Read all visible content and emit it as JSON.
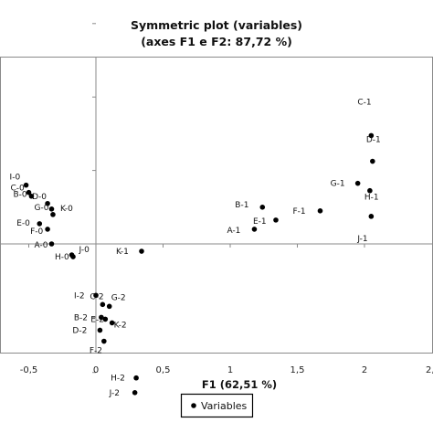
{
  "chart_data": {
    "type": "scatter",
    "title": "Symmetric plot (variables)",
    "subtitle": "(axes F1 e F2: 87,72 %)",
    "xlabel": "F1 (62,51 %)",
    "ylabel": "",
    "xlim": [
      -0.7,
      2.05
    ],
    "ylim": [
      -1.0,
      1.55
    ],
    "xticks": [
      -0.5,
      0,
      0.5,
      1,
      1.5,
      2
    ],
    "xtick_labels": [
      "-0,5",
      "0",
      "0,5",
      "1",
      "1,5",
      "2"
    ],
    "extra_xtick_label": "2,",
    "yticks": [
      -0.7,
      -0.4,
      0,
      0.4,
      0.8,
      1.2
    ],
    "grid": false,
    "legend": {
      "position": "bottom",
      "entries": [
        "Variables"
      ]
    },
    "series": [
      {
        "name": "Variables",
        "points": [
          {
            "label": "I-0",
            "x": -0.52,
            "y": 0.32
          },
          {
            "label": "C-0",
            "x": -0.5,
            "y": 0.28
          },
          {
            "label": "B-0",
            "x": -0.48,
            "y": 0.26
          },
          {
            "label": "D-0",
            "x": -0.36,
            "y": 0.22
          },
          {
            "label": "G-0",
            "x": -0.33,
            "y": 0.19
          },
          {
            "label": "K-0",
            "x": -0.32,
            "y": 0.16
          },
          {
            "label": "E-0",
            "x": -0.42,
            "y": 0.11
          },
          {
            "label": "F-0",
            "x": -0.36,
            "y": 0.08
          },
          {
            "label": "A-0",
            "x": -0.33,
            "y": 0.0
          },
          {
            "label": "J-0",
            "x": -0.18,
            "y": -0.06
          },
          {
            "label": "H-0",
            "x": -0.17,
            "y": -0.07
          },
          {
            "label": "K-1",
            "x": 0.34,
            "y": -0.04
          },
          {
            "label": "B-1",
            "x": 1.24,
            "y": 0.2
          },
          {
            "label": "E-1",
            "x": 1.34,
            "y": 0.13
          },
          {
            "label": "A-1",
            "x": 1.18,
            "y": 0.08
          },
          {
            "label": "F-1",
            "x": 1.67,
            "y": 0.18
          },
          {
            "label": "C-1",
            "x": 2.05,
            "y": 0.59
          },
          {
            "label": "D-1",
            "x": 2.06,
            "y": 0.45
          },
          {
            "label": "G-1",
            "x": 1.95,
            "y": 0.33
          },
          {
            "label": "H-1",
            "x": 2.04,
            "y": 0.29
          },
          {
            "label": "J-1",
            "x": 2.05,
            "y": 0.15
          },
          {
            "label": "I-2",
            "x": 0.0,
            "y": -0.28
          },
          {
            "label": "C-2",
            "x": 0.05,
            "y": -0.33
          },
          {
            "label": "G-2",
            "x": 0.1,
            "y": -0.34
          },
          {
            "label": "B-2",
            "x": 0.04,
            "y": -0.4
          },
          {
            "label": "E-2",
            "x": 0.07,
            "y": -0.41
          },
          {
            "label": "K-2",
            "x": 0.12,
            "y": -0.43
          },
          {
            "label": "D-2",
            "x": 0.03,
            "y": -0.47
          },
          {
            "label": "F-2",
            "x": 0.06,
            "y": -0.53
          },
          {
            "label": "H-2",
            "x": 0.3,
            "y": -0.73
          },
          {
            "label": "J-2",
            "x": 0.29,
            "y": -0.81
          }
        ]
      }
    ]
  }
}
